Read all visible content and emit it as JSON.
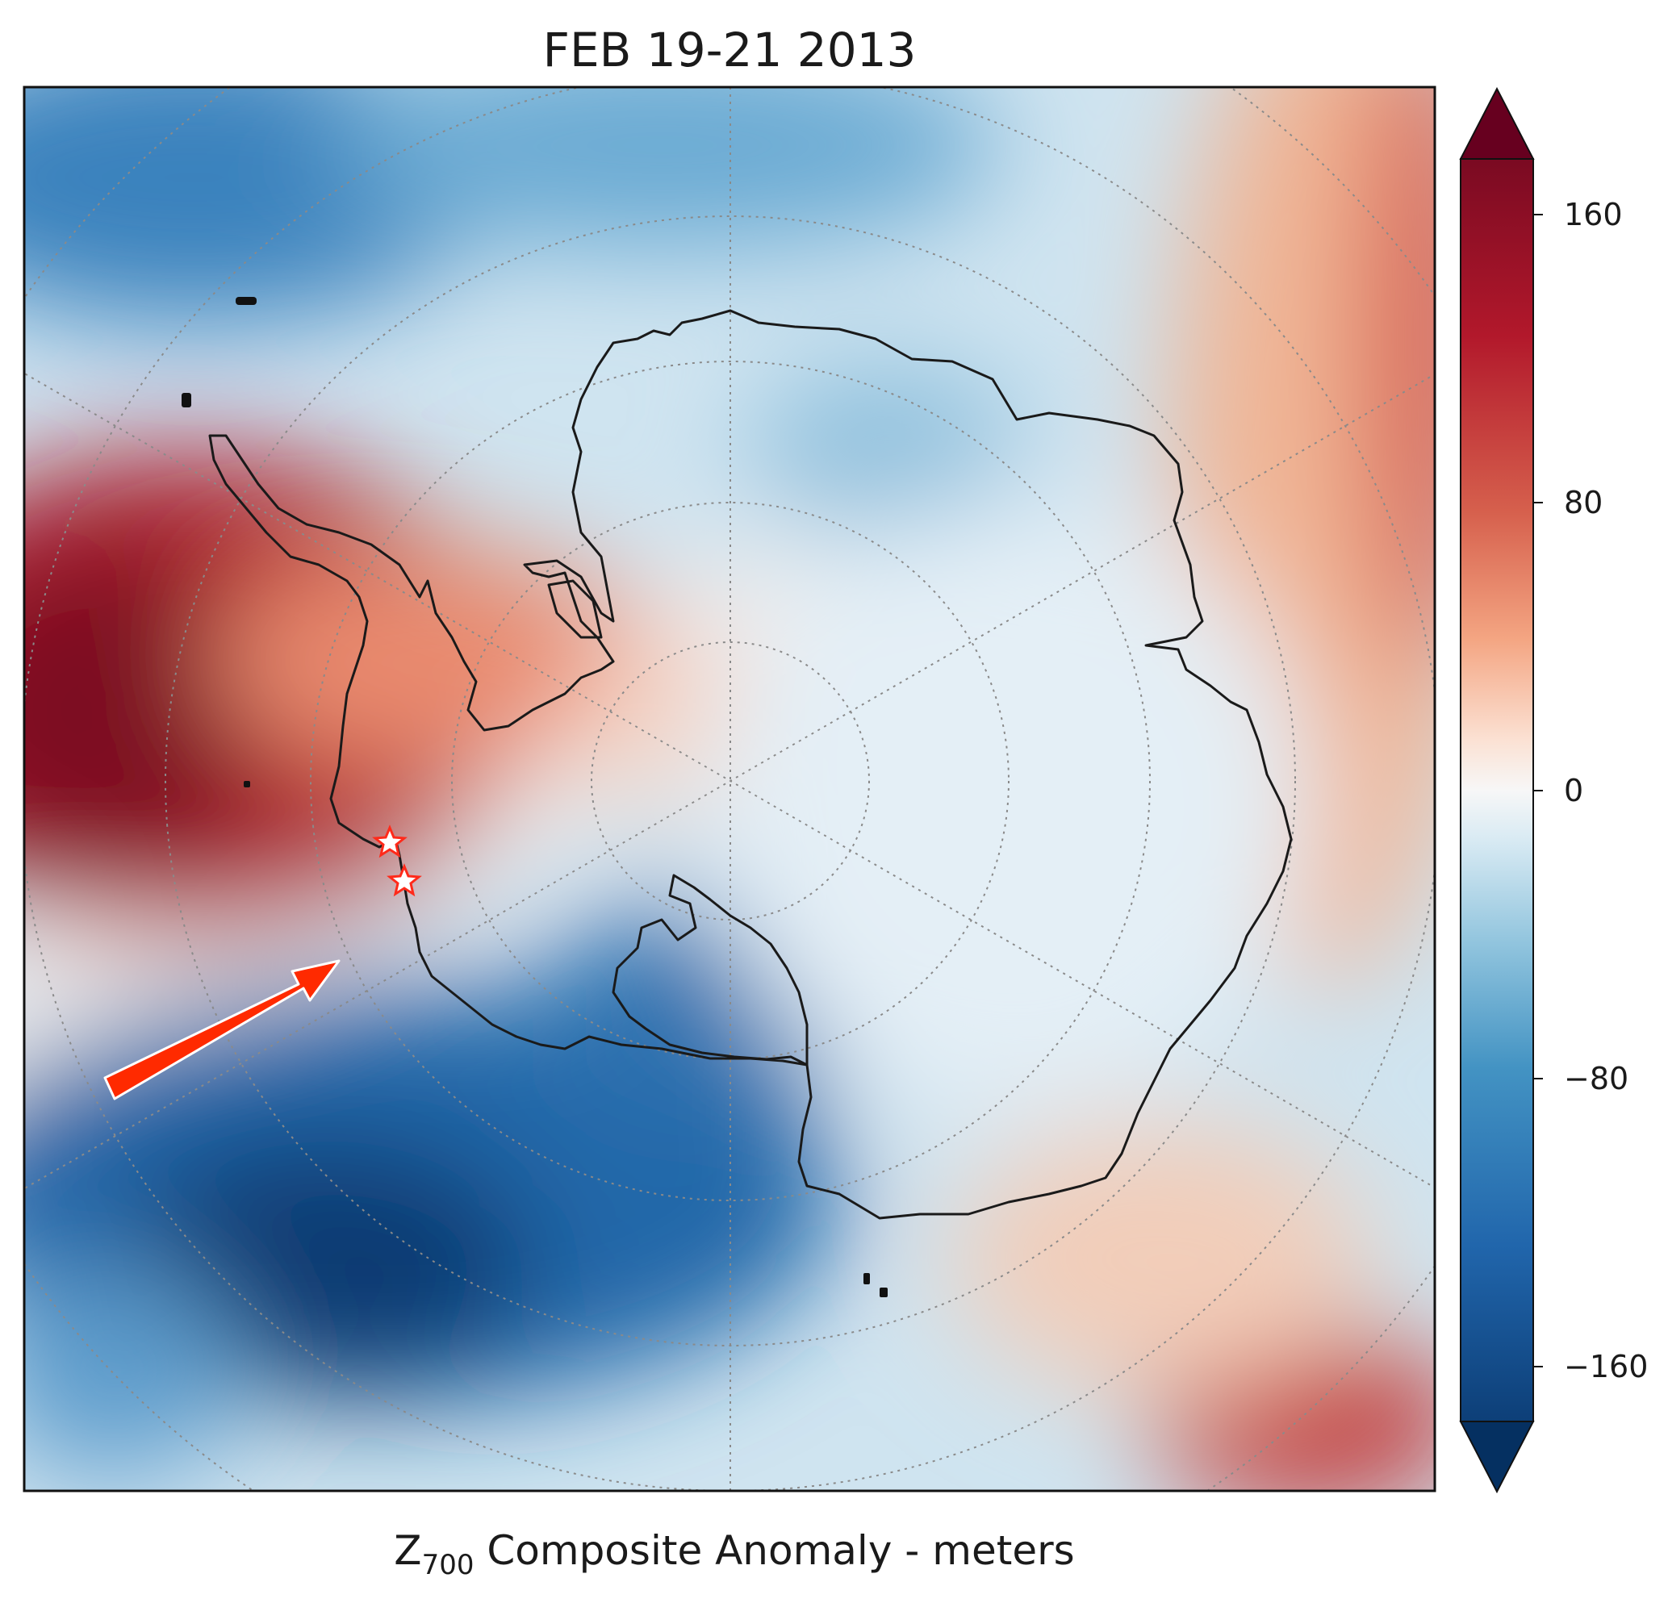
{
  "title": "FEB 19-21 2013",
  "caption": {
    "symbol": "Z",
    "subscript": "700",
    "text": " Composite Anomaly - meters"
  },
  "colorbar": {
    "ticks": [
      "160",
      "80",
      "0",
      "−80",
      "−160"
    ],
    "tick_values": [
      160,
      80,
      0,
      -80,
      -160
    ],
    "range": [
      -175,
      175
    ],
    "extend": "both",
    "colormap": "RdBu_r",
    "colors": {
      "max_extend": "#67001f",
      "high": "#b2182b",
      "mid_high": "#f4a582",
      "zero": "#f7f7f7",
      "mid_low": "#92c5de",
      "low": "#2166ac",
      "min_extend": "#053061"
    }
  },
  "map": {
    "projection": "south polar stereographic",
    "field": "Z700 composite anomaly",
    "graticule": "dotted",
    "markers": [
      {
        "type": "star",
        "color": "#ff2a1a",
        "location": "Antarctic Peninsula, west coast (north)"
      },
      {
        "type": "star",
        "color": "#ff2a1a",
        "location": "Antarctic Peninsula base"
      }
    ],
    "arrow": {
      "color": "#ff2a00",
      "points_to": "Antarctic Peninsula base"
    }
  }
}
